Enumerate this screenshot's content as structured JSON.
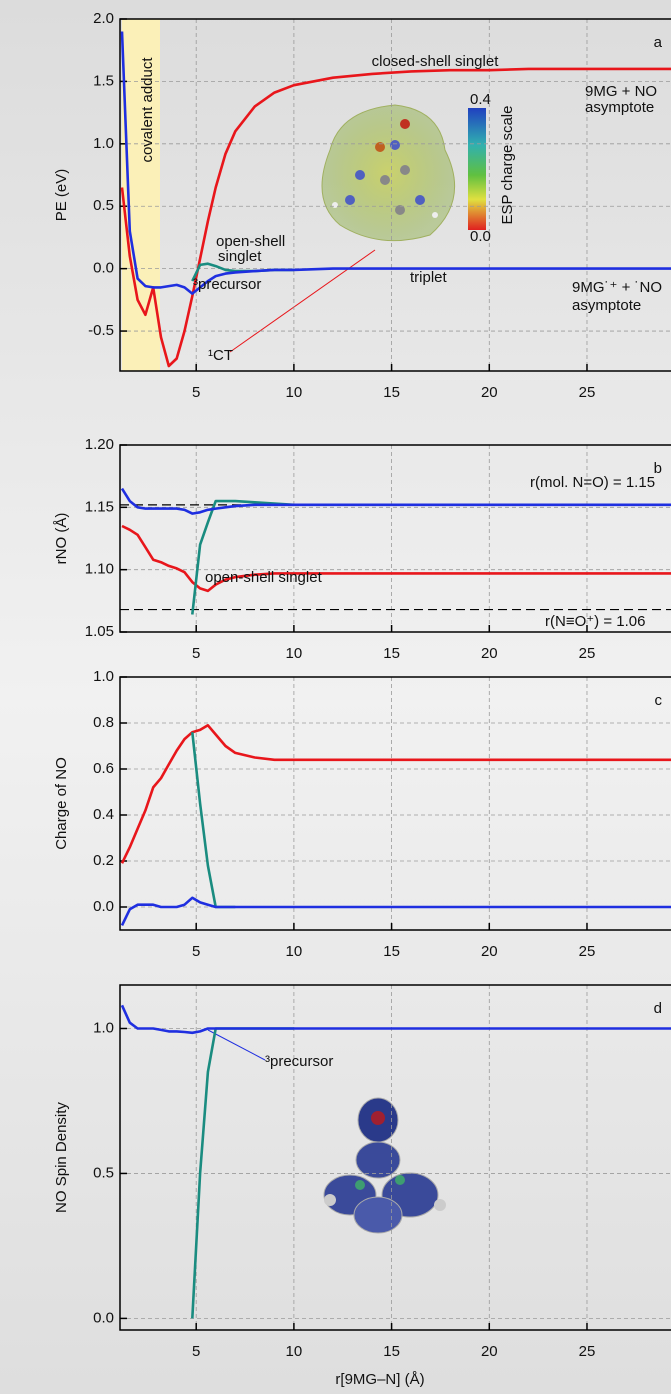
{
  "chart_data": [
    {
      "type": "line",
      "panel_label": "a",
      "y_label": "PE (eV)",
      "x": [
        1.2,
        1.6,
        2.0,
        2.4,
        2.8,
        3.2,
        3.6,
        4.0,
        4.4,
        4.8,
        5.2,
        5.6,
        6.0,
        6.5,
        7,
        8,
        9,
        10,
        12,
        14,
        16,
        18,
        20,
        22,
        24,
        26,
        28,
        29.3
      ],
      "series": [
        {
          "color": "#e8161b",
          "values": [
            0.65,
            0.1,
            -0.25,
            -0.37,
            -0.15,
            -0.55,
            -0.78,
            -0.72,
            -0.5,
            -0.22,
            0.08,
            0.38,
            0.65,
            0.92,
            1.1,
            1.3,
            1.41,
            1.47,
            1.53,
            1.56,
            1.58,
            1.59,
            1.59,
            1.6,
            1.6,
            1.6,
            1.6,
            1.6
          ]
        },
        {
          "color": "#1a8c80",
          "values": [
            null,
            null,
            null,
            null,
            null,
            null,
            null,
            null,
            null,
            -0.1,
            0.03,
            0.04,
            0.02,
            -0.01,
            -0.02,
            -0.02,
            -0.01,
            -0.01,
            null,
            null,
            null,
            null,
            null,
            null,
            null,
            null,
            null,
            null
          ]
        },
        {
          "color": "#1f2fe0",
          "values": [
            1.9,
            0.3,
            -0.08,
            -0.14,
            -0.15,
            -0.15,
            -0.14,
            -0.13,
            -0.15,
            -0.2,
            -0.15,
            -0.1,
            -0.06,
            -0.04,
            -0.03,
            -0.02,
            -0.01,
            -0.01,
            0,
            0,
            0,
            0,
            0,
            0,
            0,
            0,
            0,
            0
          ]
        }
      ],
      "xlim": [
        1.1,
        29.3
      ],
      "xticks": [
        5,
        10,
        15,
        20,
        25
      ],
      "ylim": [
        -0.82,
        2.0
      ],
      "yticks": [
        {
          "value": 2.0,
          "label": "2.0"
        },
        1.5,
        {
          "value": 1.0,
          "label": "1.0"
        },
        0.5,
        {
          "value": 0.0,
          "label": "0.0"
        },
        -0.5
      ],
      "grid": true,
      "annotations": [
        "covalent adduct",
        "closed-shell singlet",
        "9MG + NO",
        "asymptote",
        "open-shell",
        "singlet",
        "triplet",
        "³precursor",
        "¹CT",
        "9MG˙⁺ + ˙NO",
        "asymptote",
        "0.4",
        "0.0",
        "ESP charge scale"
      ]
    },
    {
      "type": "line",
      "panel_label": "b",
      "y_label": "rNO (Å)",
      "x": [
        1.2,
        1.6,
        2.0,
        2.4,
        2.8,
        3.2,
        3.6,
        4.0,
        4.4,
        4.8,
        5.2,
        5.6,
        6.0,
        6.5,
        7,
        8,
        9,
        10,
        12,
        14,
        16,
        18,
        20,
        22,
        24,
        26,
        28,
        29.3
      ],
      "series": [
        {
          "color": "#e8161b",
          "values": [
            1.135,
            1.132,
            1.128,
            1.118,
            1.108,
            1.106,
            1.103,
            1.101,
            1.098,
            1.09,
            1.085,
            1.083,
            1.088,
            1.092,
            1.094,
            1.096,
            1.097,
            1.097,
            1.097,
            1.097,
            1.097,
            1.097,
            1.097,
            1.097,
            1.097,
            1.097,
            1.097,
            1.097
          ]
        },
        {
          "color": "#1a8c80",
          "values": [
            null,
            null,
            null,
            null,
            null,
            null,
            null,
            null,
            null,
            1.064,
            1.12,
            1.138,
            1.155,
            1.155,
            1.155,
            1.154,
            1.153,
            1.152,
            null,
            null,
            null,
            null,
            null,
            null,
            null,
            null,
            null,
            null
          ]
        },
        {
          "color": "#1f2fe0",
          "values": [
            1.165,
            1.155,
            1.15,
            1.149,
            1.149,
            1.149,
            1.149,
            1.149,
            1.148,
            1.145,
            1.146,
            1.148,
            1.149,
            1.15,
            1.151,
            1.152,
            1.152,
            1.152,
            1.152,
            1.152,
            1.152,
            1.152,
            1.152,
            1.152,
            1.152,
            1.152,
            1.152,
            1.152
          ]
        }
      ],
      "hlines": [
        1.152,
        1.068
      ],
      "xlim": [
        1.1,
        29.3
      ],
      "xticks": [
        5,
        10,
        15,
        20,
        25
      ],
      "ylim": [
        1.05,
        1.2
      ],
      "yticks": [
        {
          "value": 1.2,
          "label": "1.20"
        },
        1.15,
        {
          "value": 1.1,
          "label": "1.10"
        },
        1.05
      ],
      "grid": true,
      "annotations": [
        "r(mol. N=O) = 1.15",
        "open-shell singlet",
        "r(N≡O⁺) = 1.06"
      ]
    },
    {
      "type": "line",
      "panel_label": "c",
      "y_label": "Charge of NO",
      "x": [
        1.2,
        1.6,
        2.0,
        2.4,
        2.8,
        3.2,
        3.6,
        4.0,
        4.4,
        4.8,
        5.2,
        5.6,
        6.0,
        6.5,
        7,
        8,
        9,
        10,
        12,
        14,
        16,
        18,
        20,
        22,
        24,
        26,
        28,
        29.3
      ],
      "series": [
        {
          "color": "#e8161b",
          "values": [
            0.19,
            0.26,
            0.34,
            0.42,
            0.52,
            0.56,
            0.62,
            0.68,
            0.73,
            0.76,
            0.77,
            0.79,
            0.75,
            0.7,
            0.67,
            0.65,
            0.64,
            0.64,
            0.64,
            0.64,
            0.64,
            0.64,
            0.64,
            0.64,
            0.64,
            0.64,
            0.64,
            0.64
          ]
        },
        {
          "color": "#1a8c80",
          "values": [
            null,
            null,
            null,
            null,
            null,
            null,
            null,
            null,
            null,
            0.76,
            0.45,
            0.18,
            0,
            0,
            0,
            null,
            null,
            null,
            null,
            null,
            null,
            null,
            null,
            null,
            null,
            null,
            null,
            null
          ]
        },
        {
          "color": "#1f2fe0",
          "values": [
            -0.08,
            -0.01,
            0.01,
            0.01,
            0.01,
            0,
            0,
            0,
            0.01,
            0.04,
            0.02,
            0.01,
            0,
            0,
            0,
            0,
            0,
            0,
            0,
            0,
            0,
            0,
            0,
            0,
            0,
            0,
            0,
            0
          ]
        }
      ],
      "xlim": [
        1.1,
        29.3
      ],
      "xticks": [
        5,
        10,
        15,
        20,
        25
      ],
      "ylim": [
        -0.1,
        1.0
      ],
      "yticks": [
        {
          "value": 0,
          "label": "0.0"
        },
        0.2,
        0.4,
        0.6,
        0.8,
        {
          "value": 1,
          "label": "1.0"
        }
      ],
      "grid": true,
      "annotations": []
    },
    {
      "type": "line",
      "panel_label": "d",
      "y_label": "NO Spin Density",
      "x_label": "r[9MG–N] (Å)",
      "x": [
        1.2,
        1.6,
        2.0,
        2.4,
        2.8,
        3.2,
        3.6,
        4.0,
        4.4,
        4.8,
        5.2,
        5.6,
        6.0,
        6.5,
        7,
        8,
        9,
        10,
        12,
        14,
        16,
        18,
        20,
        22,
        24,
        26,
        28,
        29.3
      ],
      "series": [
        {
          "color": "#1a8c80",
          "values": [
            null,
            null,
            null,
            null,
            null,
            null,
            null,
            null,
            null,
            0,
            0.5,
            0.85,
            1.0,
            1.0,
            1.0,
            1.0,
            1.0,
            1.0,
            null,
            null,
            null,
            null,
            null,
            null,
            null,
            null,
            null,
            null
          ]
        },
        {
          "color": "#1f2fe0",
          "values": [
            1.08,
            1.02,
            1.0,
            1.0,
            1.0,
            0.995,
            0.99,
            0.99,
            0.988,
            0.985,
            0.99,
            1.0,
            1.0,
            1.0,
            1.0,
            1.0,
            1.0,
            1.0,
            1.0,
            1.0,
            1.0,
            1.0,
            1.0,
            1.0,
            1.0,
            1.0,
            1.0,
            1.0
          ]
        }
      ],
      "xlim": [
        1.1,
        29.3
      ],
      "xticks": [
        5,
        10,
        15,
        20,
        25
      ],
      "ylim": [
        -0.04,
        1.15
      ],
      "yticks": [
        {
          "value": 0,
          "label": "0.0"
        },
        0.5,
        {
          "value": 1,
          "label": "1.0"
        }
      ],
      "grid": true,
      "annotations": [
        "³precursor"
      ]
    }
  ]
}
